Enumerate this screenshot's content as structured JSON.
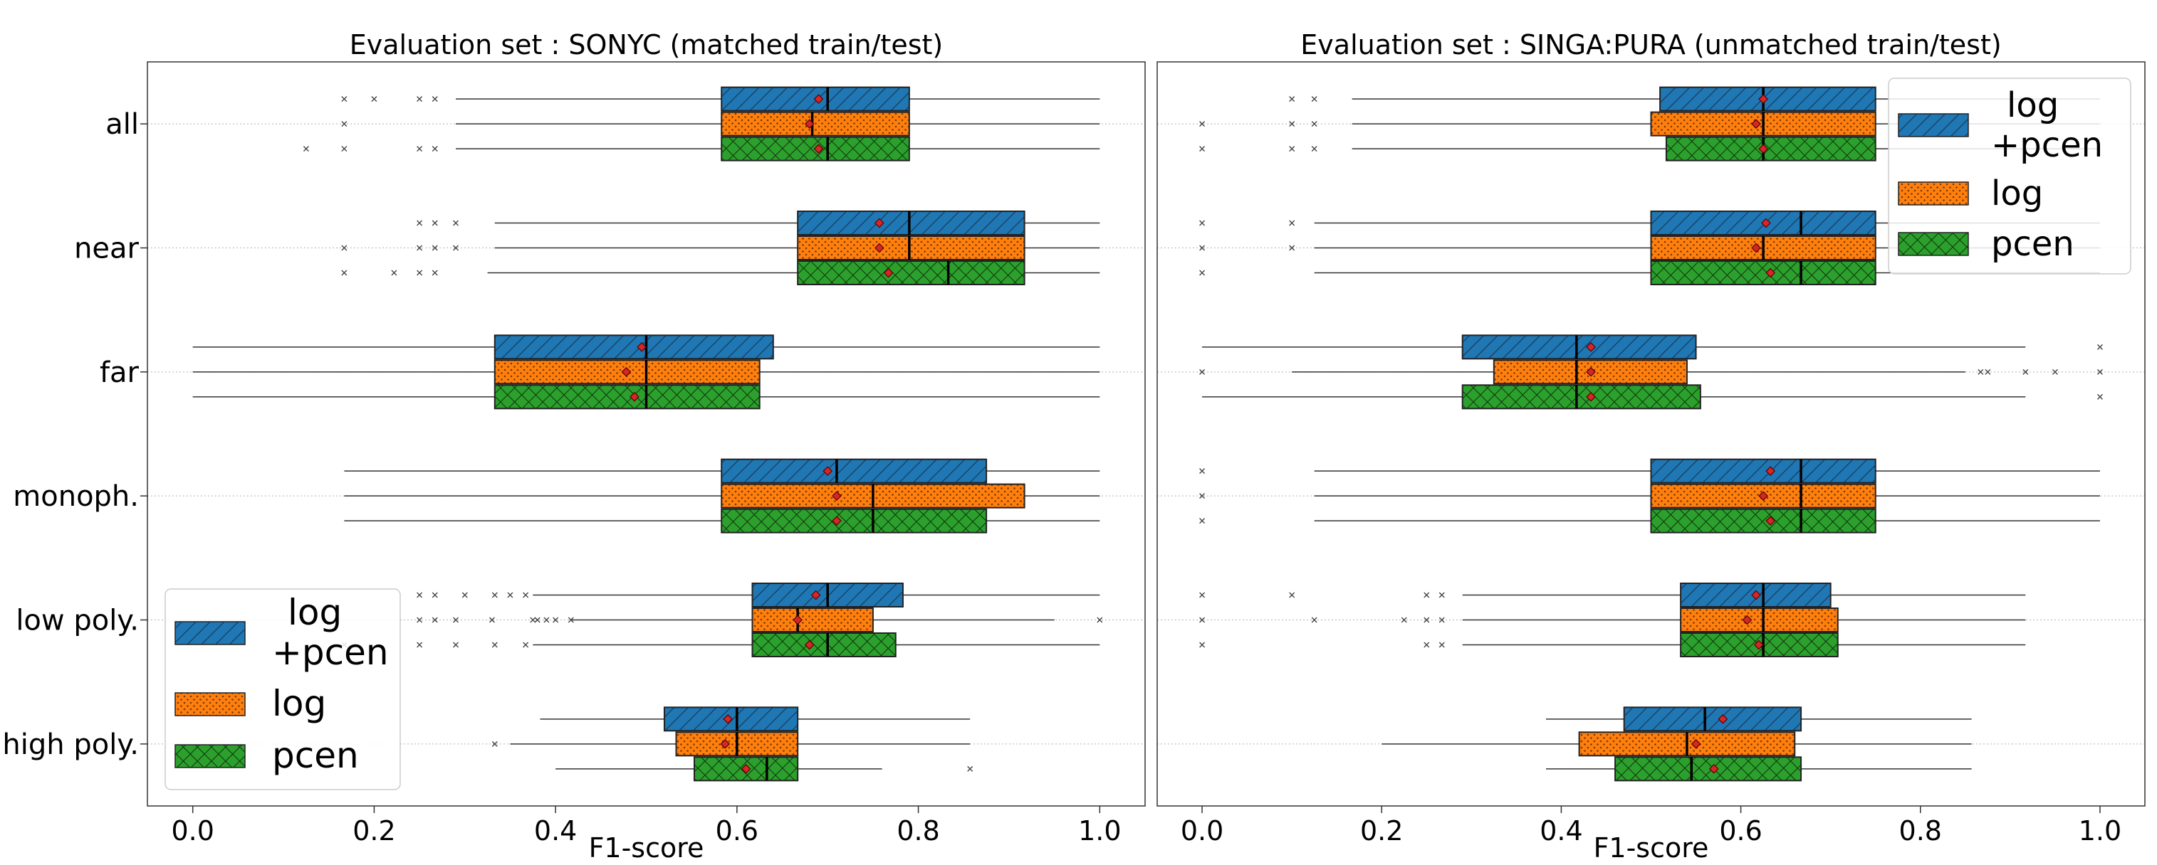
{
  "colors": {
    "log+pcen": "#1f77b4",
    "log": "#ff7f0e",
    "pcen": "#2ca02c",
    "mean_marker": "#d62728"
  },
  "chart_data": [
    {
      "type": "boxplot",
      "title": "Evaluation set : SONYC (matched train/test)",
      "xlabel": "F1-score",
      "ylabel": "",
      "xlim": [
        -0.05,
        1.05
      ],
      "xticks": [
        0.0,
        0.2,
        0.4,
        0.6,
        0.8,
        1.0
      ],
      "xtick_labels": [
        "0.0",
        "0.2",
        "0.4",
        "0.6",
        "0.8",
        "1.0"
      ],
      "categories": [
        "all",
        "near",
        "far",
        "monoph.",
        "low poly.",
        "high poly."
      ],
      "legend": {
        "position": "lower-left",
        "entries": [
          "log\n+pcen",
          "log",
          "pcen"
        ]
      },
      "series": [
        {
          "name": "log\n+pcen",
          "pattern": "hatch-diag",
          "boxes": [
            {
              "whislo": 0.29,
              "q1": 0.583,
              "med": 0.7,
              "q3": 0.79,
              "whishi": 1.0,
              "mean": 0.69,
              "fliers": [
                0.167,
                0.2,
                0.25,
                0.267
              ]
            },
            {
              "whislo": 0.333,
              "q1": 0.667,
              "med": 0.79,
              "q3": 0.917,
              "whishi": 1.0,
              "mean": 0.757,
              "fliers": [
                0.25,
                0.267,
                0.29
              ]
            },
            {
              "whislo": 0.0,
              "q1": 0.333,
              "med": 0.5,
              "q3": 0.64,
              "whishi": 1.0,
              "mean": 0.495,
              "fliers": []
            },
            {
              "whislo": 0.167,
              "q1": 0.583,
              "med": 0.71,
              "q3": 0.875,
              "whishi": 1.0,
              "mean": 0.7,
              "fliers": []
            },
            {
              "whislo": 0.375,
              "q1": 0.617,
              "med": 0.7,
              "q3": 0.783,
              "whishi": 1.0,
              "mean": 0.687,
              "fliers": [
                0.25,
                0.267,
                0.3,
                0.333,
                0.35,
                0.367
              ]
            },
            {
              "whislo": 0.383,
              "q1": 0.52,
              "med": 0.6,
              "q3": 0.667,
              "whishi": 0.857,
              "mean": 0.59,
              "fliers": []
            }
          ]
        },
        {
          "name": "log",
          "pattern": "dots",
          "boxes": [
            {
              "whislo": 0.29,
              "q1": 0.583,
              "med": 0.683,
              "q3": 0.79,
              "whishi": 1.0,
              "mean": 0.68,
              "fliers": [
                0.167
              ]
            },
            {
              "whislo": 0.333,
              "q1": 0.667,
              "med": 0.79,
              "q3": 0.917,
              "whishi": 1.0,
              "mean": 0.757,
              "fliers": [
                0.167,
                0.25,
                0.267,
                0.29
              ]
            },
            {
              "whislo": 0.0,
              "q1": 0.333,
              "med": 0.5,
              "q3": 0.625,
              "whishi": 1.0,
              "mean": 0.478,
              "fliers": []
            },
            {
              "whislo": 0.167,
              "q1": 0.583,
              "med": 0.75,
              "q3": 0.917,
              "whishi": 1.0,
              "mean": 0.71,
              "fliers": []
            },
            {
              "whislo": 0.417,
              "q1": 0.617,
              "med": 0.667,
              "q3": 0.75,
              "whishi": 0.95,
              "mean": 0.667,
              "fliers": [
                0.25,
                0.267,
                0.29,
                0.33,
                0.375,
                0.38,
                0.39,
                0.4,
                0.417,
                1.0
              ]
            },
            {
              "whislo": 0.35,
              "q1": 0.533,
              "med": 0.6,
              "q3": 0.667,
              "whishi": 0.857,
              "mean": 0.587,
              "fliers": [
                0.333
              ]
            }
          ]
        },
        {
          "name": "pcen",
          "pattern": "crosshatch",
          "boxes": [
            {
              "whislo": 0.29,
              "q1": 0.583,
              "med": 0.7,
              "q3": 0.79,
              "whishi": 1.0,
              "mean": 0.69,
              "fliers": [
                0.125,
                0.167,
                0.25,
                0.267
              ]
            },
            {
              "whislo": 0.325,
              "q1": 0.667,
              "med": 0.833,
              "q3": 0.917,
              "whishi": 1.0,
              "mean": 0.767,
              "fliers": [
                0.167,
                0.222,
                0.25,
                0.267
              ]
            },
            {
              "whislo": 0.0,
              "q1": 0.333,
              "med": 0.5,
              "q3": 0.625,
              "whishi": 1.0,
              "mean": 0.487,
              "fliers": []
            },
            {
              "whislo": 0.167,
              "q1": 0.583,
              "med": 0.75,
              "q3": 0.875,
              "whishi": 1.0,
              "mean": 0.71,
              "fliers": []
            },
            {
              "whislo": 0.375,
              "q1": 0.617,
              "med": 0.7,
              "q3": 0.775,
              "whishi": 1.0,
              "mean": 0.68,
              "fliers": [
                0.167,
                0.25,
                0.29,
                0.333,
                0.367
              ]
            },
            {
              "whislo": 0.4,
              "q1": 0.553,
              "med": 0.633,
              "q3": 0.667,
              "whishi": 0.76,
              "mean": 0.61,
              "fliers": [
                0.857
              ]
            }
          ]
        }
      ]
    },
    {
      "type": "boxplot",
      "title": "Evaluation set : SINGA:PURA (unmatched train/test)",
      "xlabel": "F1-score",
      "ylabel": "",
      "xlim": [
        -0.05,
        1.05
      ],
      "xticks": [
        0.0,
        0.2,
        0.4,
        0.6,
        0.8,
        1.0
      ],
      "xtick_labels": [
        "0.0",
        "0.2",
        "0.4",
        "0.6",
        "0.8",
        "1.0"
      ],
      "categories": [
        "all",
        "near",
        "far",
        "monoph.",
        "low poly.",
        "high poly."
      ],
      "legend": {
        "position": "upper-right",
        "entries": [
          "log\n+pcen",
          "log",
          "pcen"
        ]
      },
      "series": [
        {
          "name": "log\n+pcen",
          "pattern": "hatch-diag",
          "boxes": [
            {
              "whislo": 0.167,
              "q1": 0.51,
              "med": 0.625,
              "q3": 0.75,
              "whishi": 1.0,
              "mean": 0.625,
              "fliers": [
                0.1,
                0.125
              ]
            },
            {
              "whislo": 0.125,
              "q1": 0.5,
              "med": 0.667,
              "q3": 0.75,
              "whishi": 1.0,
              "mean": 0.628,
              "fliers": [
                0.0,
                0.1
              ]
            },
            {
              "whislo": 0.0,
              "q1": 0.29,
              "med": 0.417,
              "q3": 0.55,
              "whishi": 0.917,
              "mean": 0.433,
              "fliers": [
                1.0
              ]
            },
            {
              "whislo": 0.125,
              "q1": 0.5,
              "med": 0.667,
              "q3": 0.75,
              "whishi": 1.0,
              "mean": 0.633,
              "fliers": [
                0.0
              ]
            },
            {
              "whislo": 0.29,
              "q1": 0.533,
              "med": 0.625,
              "q3": 0.7,
              "whishi": 0.917,
              "mean": 0.617,
              "fliers": [
                0.0,
                0.1,
                0.25,
                0.267
              ]
            },
            {
              "whislo": 0.383,
              "q1": 0.47,
              "med": 0.56,
              "q3": 0.667,
              "whishi": 0.857,
              "mean": 0.58,
              "fliers": []
            }
          ]
        },
        {
          "name": "log",
          "pattern": "dots",
          "boxes": [
            {
              "whislo": 0.167,
              "q1": 0.5,
              "med": 0.625,
              "q3": 0.75,
              "whishi": 1.0,
              "mean": 0.617,
              "fliers": [
                0.0,
                0.1,
                0.125
              ]
            },
            {
              "whislo": 0.125,
              "q1": 0.5,
              "med": 0.625,
              "q3": 0.75,
              "whishi": 1.0,
              "mean": 0.617,
              "fliers": [
                0.0,
                0.1
              ]
            },
            {
              "whislo": 0.1,
              "q1": 0.325,
              "med": 0.417,
              "q3": 0.54,
              "whishi": 0.85,
              "mean": 0.433,
              "fliers": [
                0.0,
                0.867,
                0.875,
                0.917,
                0.95,
                1.0
              ]
            },
            {
              "whislo": 0.125,
              "q1": 0.5,
              "med": 0.667,
              "q3": 0.75,
              "whishi": 1.0,
              "mean": 0.625,
              "fliers": [
                0.0
              ]
            },
            {
              "whislo": 0.29,
              "q1": 0.533,
              "med": 0.625,
              "q3": 0.708,
              "whishi": 0.917,
              "mean": 0.607,
              "fliers": [
                0.0,
                0.125,
                0.225,
                0.25,
                0.267
              ]
            },
            {
              "whislo": 0.2,
              "q1": 0.42,
              "med": 0.54,
              "q3": 0.66,
              "whishi": 0.857,
              "mean": 0.55,
              "fliers": []
            }
          ]
        },
        {
          "name": "pcen",
          "pattern": "crosshatch",
          "boxes": [
            {
              "whislo": 0.167,
              "q1": 0.517,
              "med": 0.625,
              "q3": 0.75,
              "whishi": 1.0,
              "mean": 0.625,
              "fliers": [
                0.0,
                0.1,
                0.125
              ]
            },
            {
              "whislo": 0.125,
              "q1": 0.5,
              "med": 0.667,
              "q3": 0.75,
              "whishi": 1.0,
              "mean": 0.633,
              "fliers": [
                0.0
              ]
            },
            {
              "whislo": 0.0,
              "q1": 0.29,
              "med": 0.417,
              "q3": 0.555,
              "whishi": 0.917,
              "mean": 0.433,
              "fliers": [
                1.0
              ]
            },
            {
              "whislo": 0.125,
              "q1": 0.5,
              "med": 0.667,
              "q3": 0.75,
              "whishi": 1.0,
              "mean": 0.633,
              "fliers": [
                0.0
              ]
            },
            {
              "whislo": 0.29,
              "q1": 0.533,
              "med": 0.625,
              "q3": 0.708,
              "whishi": 0.917,
              "mean": 0.62,
              "fliers": [
                0.0,
                0.25,
                0.267
              ]
            },
            {
              "whislo": 0.383,
              "q1": 0.46,
              "med": 0.545,
              "q3": 0.667,
              "whishi": 0.857,
              "mean": 0.57,
              "fliers": []
            }
          ]
        }
      ]
    }
  ]
}
